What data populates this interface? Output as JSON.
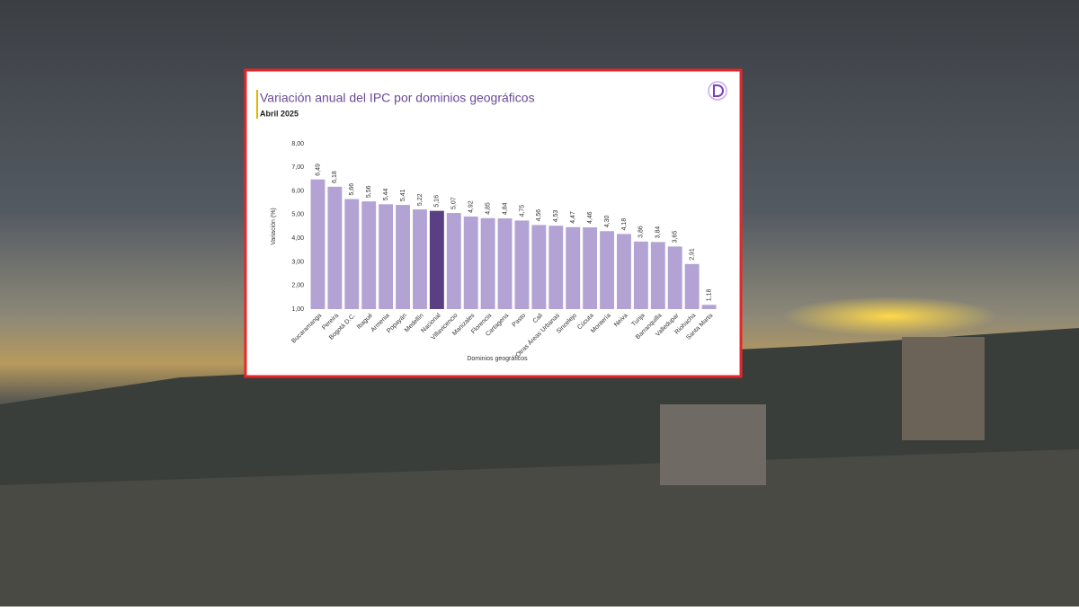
{
  "chart_data": {
    "type": "bar",
    "title": "Variación anual del IPC por dominios geográficos",
    "subtitle": "Abril 2025",
    "y_label": "Variación (%)",
    "x_label": "Dominios geográficos",
    "categories": [
      "Bucaramanga",
      "Pereira",
      "Bogotá D.C.",
      "Ibagué",
      "Armenia",
      "Popayán",
      "Medellín",
      "Nacional",
      "Villavicencio",
      "Manizales",
      "Florencia",
      "Cartagena",
      "Pasto",
      "Cali",
      "Otras Áreas Urbanas",
      "Sincelejo",
      "Cúcuta",
      "Montería",
      "Neiva",
      "Tunja",
      "Barranquilla",
      "Valledupar",
      "Riohacha",
      "Santa Marta"
    ],
    "values": [
      6.49,
      6.18,
      5.66,
      5.56,
      5.44,
      5.41,
      5.22,
      5.16,
      5.07,
      4.92,
      4.85,
      4.84,
      4.75,
      4.56,
      4.53,
      4.47,
      4.46,
      4.3,
      4.18,
      3.86,
      3.84,
      3.65,
      2.91,
      1.18
    ],
    "value_labels": [
      "6,49",
      "6,18",
      "5,66",
      "5,56",
      "5,44",
      "5,41",
      "5,22",
      "5,16",
      "5,07",
      "4,92",
      "4,85",
      "4,84",
      "4,75",
      "4,56",
      "4,53",
      "4,47",
      "4,46",
      "4,30",
      "4,18",
      "3,86",
      "3,84",
      "3,65",
      "2,91",
      "1,18"
    ],
    "colors": [
      "#b3a3d4",
      "#b3a3d4",
      "#b3a3d4",
      "#b3a3d4",
      "#b3a3d4",
      "#b3a3d4",
      "#b3a3d4",
      "#5a3f83",
      "#b3a3d4",
      "#b3a3d4",
      "#b3a3d4",
      "#b3a3d4",
      "#b3a3d4",
      "#b3a3d4",
      "#b3a3d4",
      "#b3a3d4",
      "#b3a3d4",
      "#b3a3d4",
      "#b3a3d4",
      "#b3a3d4",
      "#b3a3d4",
      "#b3a3d4",
      "#b3a3d4",
      "#b3a3d4"
    ],
    "ylim": [
      1,
      8
    ],
    "yticks": [
      {
        "value": 1,
        "label": "1,00"
      },
      {
        "value": 2,
        "label": "2,00"
      },
      {
        "value": 3,
        "label": "3,00"
      },
      {
        "value": 4,
        "label": "4,00"
      },
      {
        "value": 5,
        "label": "5,00"
      },
      {
        "value": 6,
        "label": "6,00"
      },
      {
        "value": 7,
        "label": "7,00"
      },
      {
        "value": 8,
        "label": "8,00"
      }
    ],
    "grid": false
  }
}
